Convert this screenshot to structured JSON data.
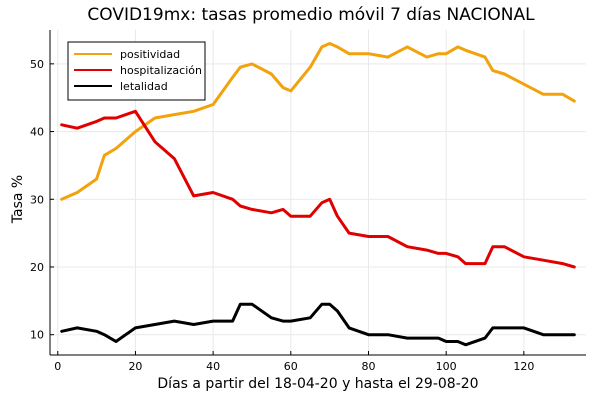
{
  "chart_data": {
    "type": "line",
    "title": "COVID19mx: tasas promedio móvil 7 días NACIONAL",
    "xlabel": "Días a partir del 18-04-20 y hasta el 29-08-20",
    "ylabel": "Tasa %",
    "xlim": [
      -2,
      136
    ],
    "ylim": [
      7,
      55
    ],
    "xticks": [
      0,
      20,
      40,
      60,
      80,
      100,
      120
    ],
    "yticks": [
      10,
      20,
      30,
      40,
      50
    ],
    "grid": true,
    "legend_position": "top-left",
    "x": [
      1,
      5,
      10,
      12,
      15,
      20,
      25,
      30,
      35,
      40,
      45,
      47,
      50,
      55,
      58,
      60,
      65,
      68,
      70,
      72,
      75,
      80,
      85,
      90,
      95,
      98,
      100,
      103,
      105,
      110,
      112,
      115,
      120,
      125,
      130,
      133
    ],
    "series": [
      {
        "name": "positividad",
        "color": "#f2a20c",
        "values": [
          30,
          31,
          33,
          36.5,
          37.5,
          40,
          42,
          42.5,
          43,
          44,
          48,
          49.5,
          50,
          48.5,
          46.5,
          46,
          49.5,
          52.5,
          53,
          52.5,
          51.5,
          51.5,
          51,
          52.5,
          51,
          51.5,
          51.5,
          52.5,
          52,
          51,
          49,
          48.5,
          47,
          45.5,
          45.5,
          44.5
        ]
      },
      {
        "name": "hospitalización",
        "color": "#e10000",
        "values": [
          41,
          40.5,
          41.5,
          42,
          42,
          43,
          38.5,
          36,
          30.5,
          31,
          30,
          29,
          28.5,
          28,
          28.5,
          27.5,
          27.5,
          29.5,
          30,
          27.5,
          25,
          24.5,
          24.5,
          23,
          22.5,
          22,
          22,
          21.5,
          20.5,
          20.5,
          23,
          23,
          21.5,
          21,
          20.5,
          20
        ]
      },
      {
        "name": "letalidad",
        "color": "#000000",
        "values": [
          10.5,
          11,
          10.5,
          10,
          9,
          11,
          11.5,
          12,
          11.5,
          12,
          12,
          14.5,
          14.5,
          12.5,
          12,
          12,
          12.5,
          14.5,
          14.5,
          13.5,
          11,
          10,
          10,
          9.5,
          9.5,
          9.5,
          9,
          9,
          8.5,
          9.5,
          11,
          11,
          11,
          10,
          10,
          10
        ]
      }
    ]
  }
}
